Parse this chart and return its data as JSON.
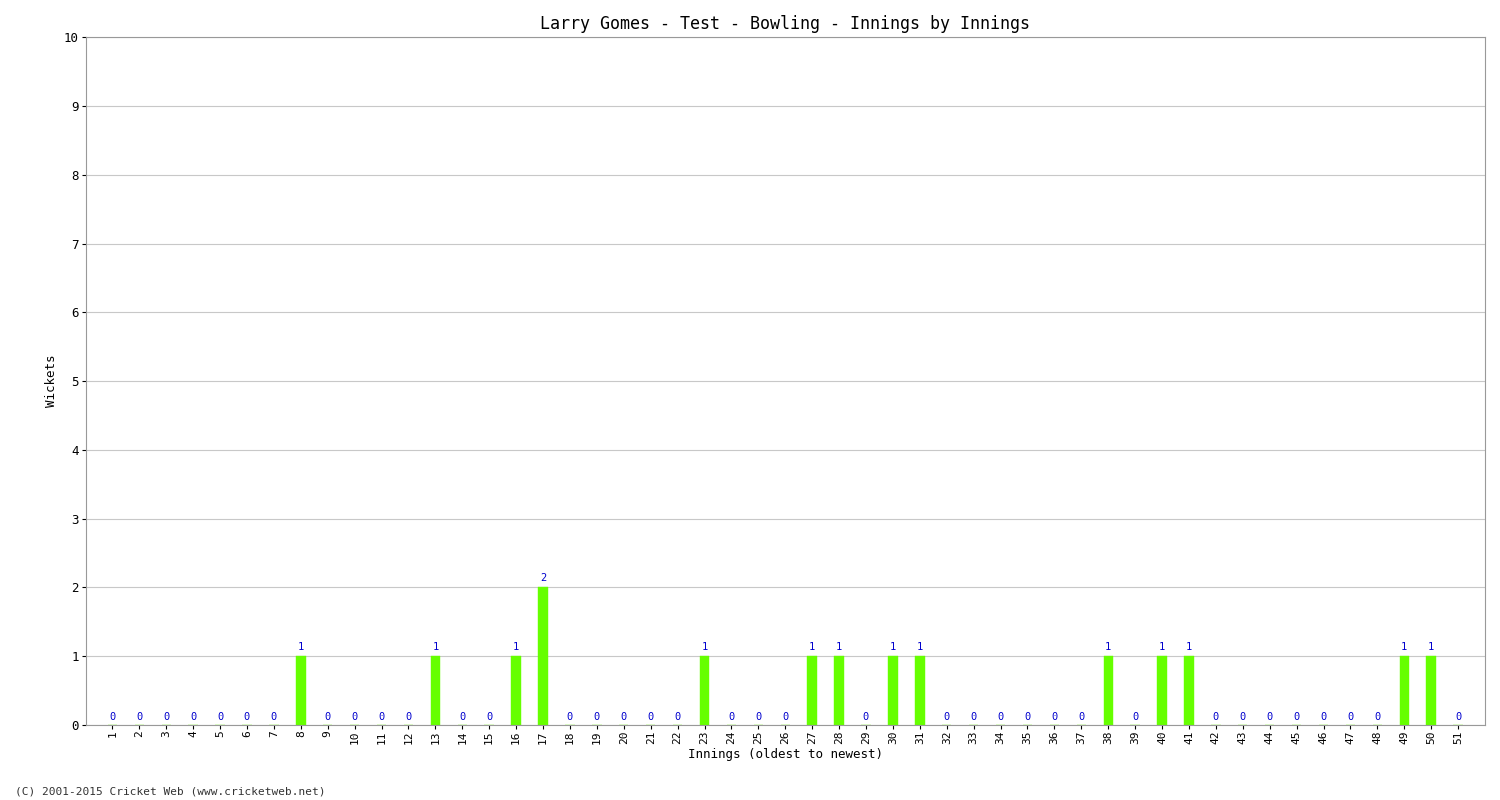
{
  "title": "Larry Gomes - Test - Bowling - Innings by Innings",
  "xlabel": "Innings (oldest to newest)",
  "ylabel": "Wickets",
  "ylim": [
    0,
    10
  ],
  "yticks": [
    0,
    1,
    2,
    3,
    4,
    5,
    6,
    7,
    8,
    9,
    10
  ],
  "innings": [
    1,
    2,
    3,
    4,
    5,
    6,
    7,
    8,
    9,
    10,
    11,
    12,
    13,
    14,
    15,
    16,
    17,
    18,
    19,
    20,
    21,
    22,
    23,
    24,
    25,
    26,
    27,
    28,
    29,
    30,
    31,
    32,
    33,
    34,
    35,
    36,
    37,
    38,
    39,
    40,
    41,
    42,
    43,
    44,
    45,
    46,
    47,
    48,
    49,
    50,
    51
  ],
  "wickets": [
    0,
    0,
    0,
    0,
    0,
    0,
    0,
    1,
    0,
    0,
    0,
    0,
    1,
    0,
    0,
    1,
    2,
    0,
    0,
    0,
    0,
    0,
    1,
    0,
    0,
    0,
    1,
    1,
    0,
    1,
    1,
    0,
    0,
    0,
    0,
    0,
    0,
    1,
    0,
    1,
    1,
    0,
    0,
    0,
    0,
    0,
    0,
    0,
    1,
    1,
    0
  ],
  "bar_color": "#66ff00",
  "bar_edge_color": "#66ff00",
  "label_color": "#0000cd",
  "background_color": "#ffffff",
  "grid_color": "#c8c8c8",
  "title_fontsize": 12,
  "axis_label_fontsize": 9,
  "tick_fontsize": 8,
  "value_label_fontsize": 7.5,
  "copyright": "(C) 2001-2015 Cricket Web (www.cricketweb.net)"
}
